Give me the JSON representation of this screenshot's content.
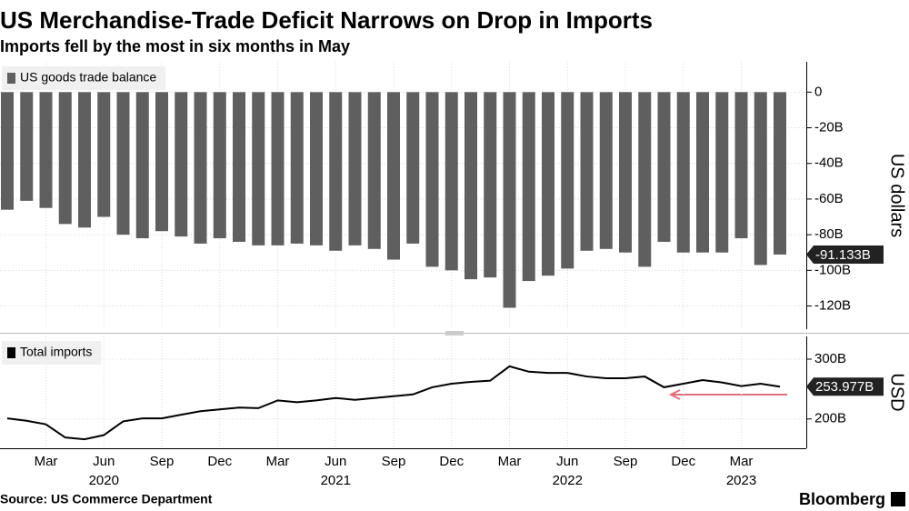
{
  "title": "US Merchandise-Trade Deficit Narrows on Drop in Imports",
  "subtitle": "Imports fell by the most in six months in May",
  "source": "Source: US Commerce Department",
  "brand": "Bloomberg",
  "chart_data": [
    {
      "type": "bar",
      "x": [
        "2020-01",
        "2020-02",
        "2020-03",
        "2020-04",
        "2020-05",
        "2020-06",
        "2020-07",
        "2020-08",
        "2020-09",
        "2020-10",
        "2020-11",
        "2020-12",
        "2021-01",
        "2021-02",
        "2021-03",
        "2021-04",
        "2021-05",
        "2021-06",
        "2021-07",
        "2021-08",
        "2021-09",
        "2021-10",
        "2021-11",
        "2021-12",
        "2022-01",
        "2022-02",
        "2022-03",
        "2022-04",
        "2022-05",
        "2022-06",
        "2022-07",
        "2022-08",
        "2022-09",
        "2022-10",
        "2022-11",
        "2022-12",
        "2023-01",
        "2023-02",
        "2023-03",
        "2023-04",
        "2023-05"
      ],
      "series": [
        {
          "name": "US goods trade balance",
          "color": "#5f5f5f",
          "values": [
            -66,
            -61,
            -65,
            -74,
            -76,
            -70,
            -80,
            -82,
            -78,
            -81,
            -85,
            -82,
            -84,
            -86,
            -86,
            -85,
            -86,
            -89,
            -86,
            -88,
            -94,
            -85,
            -98,
            -100,
            -105,
            -104,
            -121,
            -106,
            -103,
            -99,
            -89,
            -88,
            -90,
            -98,
            -84,
            -90,
            -90,
            -90,
            -82,
            -97,
            -91.133
          ],
          "value_labels": [
            null,
            null,
            null,
            null,
            null,
            null,
            null,
            null,
            null,
            null,
            null,
            null,
            null,
            null,
            null,
            null,
            null,
            null,
            null,
            null,
            null,
            null,
            null,
            null,
            null,
            null,
            null,
            null,
            null,
            null,
            null,
            null,
            null,
            null,
            null,
            null,
            null,
            null,
            null,
            null,
            "-91.133B"
          ]
        }
      ],
      "ylim": [
        -133,
        17
      ],
      "yticks": [
        0,
        {
          "value": -20,
          "label": "-20B"
        },
        {
          "value": -40,
          "label": "-40B"
        },
        {
          "value": -60,
          "label": "-60B"
        },
        {
          "value": -80,
          "label": "-80B"
        },
        {
          "value": -100,
          "label": "-100B"
        },
        {
          "value": -120,
          "label": "-120B"
        }
      ],
      "y_label": "US dollars",
      "grid": true
    },
    {
      "type": "line",
      "x": [
        "2020-01",
        "2020-02",
        "2020-03",
        "2020-04",
        "2020-05",
        "2020-06",
        "2020-07",
        "2020-08",
        "2020-09",
        "2020-10",
        "2020-11",
        "2020-12",
        "2021-01",
        "2021-02",
        "2021-03",
        "2021-04",
        "2021-05",
        "2021-06",
        "2021-07",
        "2021-08",
        "2021-09",
        "2021-10",
        "2021-11",
        "2021-12",
        "2022-01",
        "2022-02",
        "2022-03",
        "2022-04",
        "2022-05",
        "2022-06",
        "2022-07",
        "2022-08",
        "2022-09",
        "2022-10",
        "2022-11",
        "2022-12",
        "2023-01",
        "2023-02",
        "2023-03",
        "2023-04",
        "2023-05"
      ],
      "series": [
        {
          "name": "Total imports",
          "color": "#000000",
          "values": [
            201,
            197,
            191,
            169,
            166,
            173,
            196,
            201,
            201,
            207,
            213,
            216,
            219,
            218,
            231,
            228,
            231,
            235,
            232,
            235,
            238,
            241,
            253,
            259,
            262,
            264,
            288,
            279,
            277,
            277,
            271,
            268,
            268,
            271,
            253,
            259,
            265,
            261,
            255,
            259,
            253.977
          ],
          "value_labels": [
            null,
            null,
            null,
            null,
            null,
            null,
            null,
            null,
            null,
            null,
            null,
            null,
            null,
            null,
            null,
            null,
            null,
            null,
            null,
            null,
            null,
            null,
            null,
            null,
            null,
            null,
            null,
            null,
            null,
            null,
            null,
            null,
            null,
            null,
            null,
            null,
            null,
            null,
            null,
            null,
            "253.977B"
          ]
        }
      ],
      "ylim": [
        151,
        338
      ],
      "yticks": [
        {
          "value": 300,
          "label": "300B"
        },
        {
          "value": 200,
          "label": "200B"
        }
      ],
      "y_label": "USD",
      "grid": true,
      "xticks": [
        {
          "value": "2020-03",
          "label": "Mar"
        },
        {
          "value": "2020-06",
          "label": "Jun"
        },
        {
          "value": "2020-09",
          "label": "Sep"
        },
        {
          "value": "2020-12",
          "label": "Dec"
        },
        {
          "value": "2021-03",
          "label": "Mar"
        },
        {
          "value": "2021-06",
          "label": "Jun"
        },
        {
          "value": "2021-09",
          "label": "Sep"
        },
        {
          "value": "2021-12",
          "label": "Dec"
        },
        {
          "value": "2022-03",
          "label": "Mar"
        },
        {
          "value": "2022-06",
          "label": "Jun"
        },
        {
          "value": "2022-09",
          "label": "Sep"
        },
        {
          "value": "2022-12",
          "label": "Dec"
        },
        {
          "value": "2023-03",
          "label": "Mar"
        }
      ],
      "x_year_labels": [
        {
          "value": "2020-06",
          "label": "2020"
        },
        {
          "value": "2021-06",
          "label": "2021"
        },
        {
          "value": "2022-06",
          "label": "2022"
        },
        {
          "value": "2023-03",
          "label": "2023"
        }
      ]
    }
  ]
}
